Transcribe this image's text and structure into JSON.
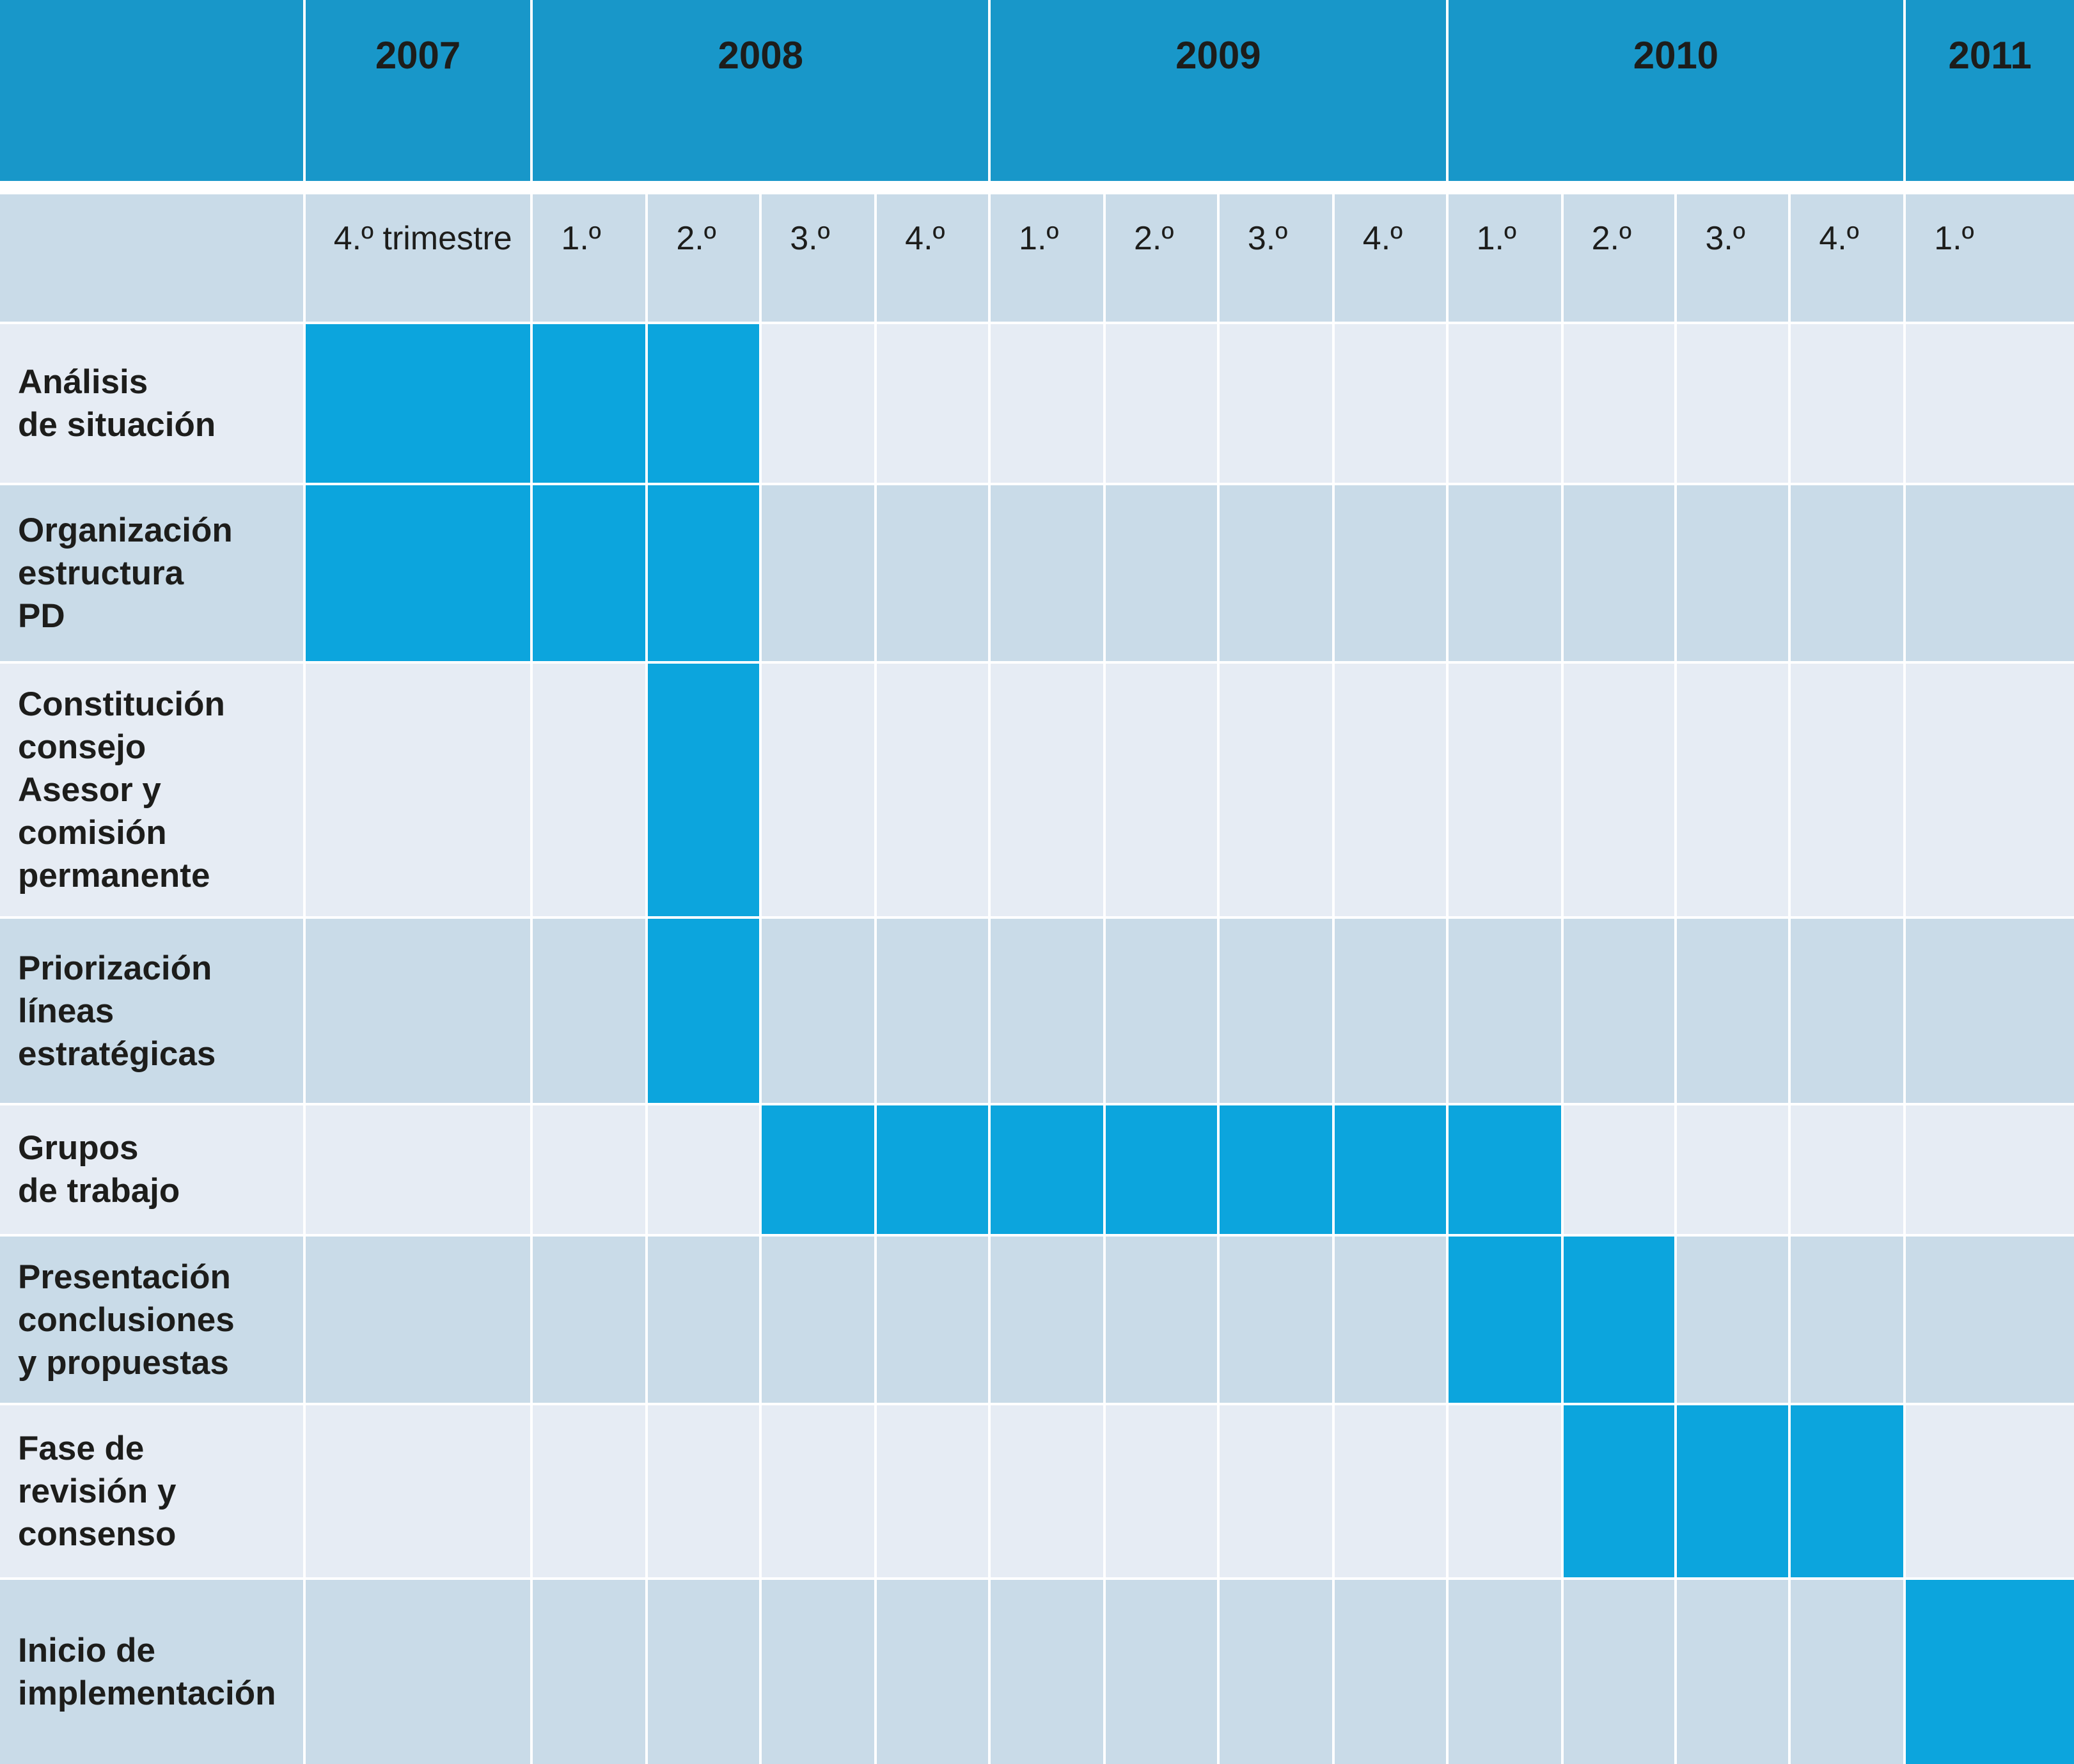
{
  "header": {
    "corner": null
  },
  "years": [
    {
      "label": "2007",
      "quarters": [
        "4.º trimestre"
      ]
    },
    {
      "label": "2008",
      "quarters": [
        "1.º",
        "2.º",
        "3.º",
        "4.º"
      ]
    },
    {
      "label": "2009",
      "quarters": [
        "1.º",
        "2.º",
        "3.º",
        "4.º"
      ]
    },
    {
      "label": "2010",
      "quarters": [
        "1.º",
        "2.º",
        "3.º",
        "4.º"
      ]
    },
    {
      "label": "2011",
      "quarters": [
        "1.º"
      ]
    }
  ],
  "tasks": [
    {
      "label": "Análisis\nde situación",
      "filled": [
        true,
        true,
        true,
        false,
        false,
        false,
        false,
        false,
        false,
        false,
        false,
        false,
        false,
        false
      ]
    },
    {
      "label": "Organización\nestructura\nPD",
      "filled": [
        true,
        true,
        true,
        false,
        false,
        false,
        false,
        false,
        false,
        false,
        false,
        false,
        false,
        false
      ]
    },
    {
      "label": "Constitución\nconsejo\nAsesor y\ncomisión\npermanente",
      "filled": [
        false,
        false,
        true,
        false,
        false,
        false,
        false,
        false,
        false,
        false,
        false,
        false,
        false,
        false
      ]
    },
    {
      "label": "Priorización\nlíneas\nestratégicas",
      "filled": [
        false,
        false,
        true,
        false,
        false,
        false,
        false,
        false,
        false,
        false,
        false,
        false,
        false,
        false
      ]
    },
    {
      "label": "Grupos\nde trabajo",
      "filled": [
        false,
        false,
        false,
        true,
        true,
        true,
        true,
        true,
        true,
        true,
        false,
        false,
        false,
        false
      ]
    },
    {
      "label": "Presentación\nconclusiones\ny propuestas",
      "filled": [
        false,
        false,
        false,
        false,
        false,
        false,
        false,
        false,
        false,
        true,
        true,
        false,
        false,
        false
      ]
    },
    {
      "label": "Fase de\nrevisión y\nconsenso",
      "filled": [
        false,
        false,
        false,
        false,
        false,
        false,
        false,
        false,
        false,
        false,
        true,
        true,
        true,
        false
      ]
    },
    {
      "label": "Inicio de\nimplementación",
      "filled": [
        false,
        false,
        false,
        false,
        false,
        false,
        false,
        false,
        false,
        false,
        false,
        false,
        false,
        true
      ]
    }
  ]
}
